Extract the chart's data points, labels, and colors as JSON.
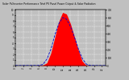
{
  "title": "Solar PV/Inverter Performance Total PV Panel Power Output & Solar Radiation",
  "background_color": "#c0c0c0",
  "plot_bg_color": "#c0c0c0",
  "x_hours": [
    0,
    1,
    2,
    3,
    4,
    5,
    6,
    7,
    8,
    9,
    10,
    11,
    12,
    13,
    14,
    15,
    16,
    17,
    18,
    19,
    20,
    21,
    22,
    23
  ],
  "pv_power": [
    0,
    0,
    0,
    0,
    0,
    0,
    0.01,
    0.08,
    0.5,
    2.2,
    5.0,
    7.8,
    9.5,
    9.2,
    7.5,
    5.2,
    2.8,
    0.8,
    0.05,
    0,
    0,
    0,
    0,
    0
  ],
  "solar_rad": [
    0,
    0,
    0,
    0,
    0,
    0,
    2,
    15,
    80,
    200,
    380,
    520,
    600,
    580,
    490,
    360,
    210,
    90,
    20,
    2,
    0,
    0,
    0,
    0
  ],
  "pv_color": "#ff0000",
  "rad_color": "#0000cc",
  "grid_color": "#ffffff",
  "ylim_left": [
    0,
    10
  ],
  "ylim_right": [
    0,
    700
  ],
  "xlim": [
    0,
    23
  ],
  "xticks": [
    0,
    2,
    4,
    6,
    8,
    10,
    12,
    14,
    16,
    18,
    20,
    22
  ],
  "yticks_left": [
    0,
    1,
    2,
    3,
    4,
    5,
    6,
    7,
    8,
    9,
    10
  ],
  "yticks_right": [
    0,
    100,
    200,
    300,
    400,
    500,
    600,
    700
  ]
}
